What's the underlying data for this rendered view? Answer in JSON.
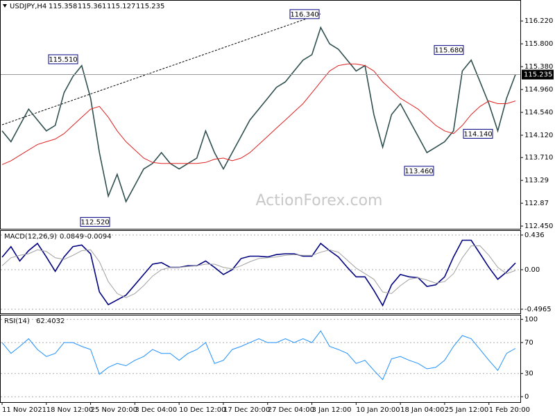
{
  "header": {
    "symbol": "USDJPY,H4",
    "ohlc": [
      115.358,
      115.361,
      115.127,
      115.235
    ]
  },
  "watermark": "ActionForex.com",
  "chart_data": [
    {
      "type": "line",
      "categories": [
        "11 Nov 2021",
        null,
        null,
        null,
        null,
        "18 Nov 12:00",
        null,
        null,
        null,
        null,
        "25 Nov 20:00",
        null,
        null,
        null,
        null,
        "3 Dec 04:00",
        null,
        null,
        null,
        null,
        "10 Dec 12:00",
        null,
        null,
        null,
        null,
        "17 Dec 20:00",
        null,
        null,
        null,
        null,
        "27 Dec 04:00",
        null,
        null,
        null,
        null,
        "3 Jan 12:00",
        null,
        null,
        null,
        null,
        "10 Jan 20:00",
        null,
        null,
        null,
        null,
        "18 Jan 04:00",
        null,
        null,
        null,
        null,
        "25 Jan 12:00",
        null,
        null,
        null,
        null,
        "1 Feb 20:00",
        null,
        null,
        null
      ],
      "series": [
        {
          "color": "#2f4f4f",
          "values": [
            114.2,
            114.0,
            114.3,
            114.6,
            114.4,
            114.2,
            114.3,
            114.9,
            115.2,
            115.4,
            114.8,
            113.8,
            113.0,
            113.4,
            112.9,
            113.2,
            113.5,
            113.6,
            113.8,
            113.6,
            113.5,
            113.6,
            113.7,
            114.2,
            113.8,
            113.5,
            113.8,
            114.1,
            114.4,
            114.6,
            114.8,
            115.0,
            115.1,
            115.3,
            115.5,
            115.6,
            116.1,
            115.8,
            115.7,
            115.5,
            115.3,
            115.4,
            114.5,
            113.9,
            114.5,
            114.7,
            114.4,
            114.1,
            113.8,
            113.9,
            114.0,
            114.2,
            115.3,
            115.5,
            115.1,
            114.7,
            114.2,
            114.8,
            115.235
          ]
        },
        {
          "color": "#e02020",
          "values": [
            113.58,
            113.65,
            113.75,
            113.85,
            113.95,
            114.0,
            114.05,
            114.15,
            114.3,
            114.45,
            114.6,
            114.65,
            114.45,
            114.2,
            114.0,
            113.85,
            113.7,
            113.62,
            113.6,
            113.6,
            113.6,
            113.6,
            113.6,
            113.62,
            113.68,
            113.7,
            113.65,
            113.7,
            113.8,
            113.95,
            114.1,
            114.25,
            114.4,
            114.55,
            114.7,
            114.9,
            115.1,
            115.3,
            115.4,
            115.43,
            115.43,
            115.4,
            115.3,
            115.1,
            114.95,
            114.8,
            114.7,
            114.6,
            114.45,
            114.3,
            114.2,
            114.15,
            114.3,
            114.5,
            114.65,
            114.75,
            114.7,
            114.7,
            114.75
          ]
        }
      ],
      "annotations": [
        {
          "value": 116.34,
          "label": "116.340"
        },
        {
          "value": 115.51,
          "label": "115.510"
        },
        {
          "value": 115.68,
          "label": "115.680"
        },
        {
          "value": 114.14,
          "label": "114.140"
        },
        {
          "value": 113.46,
          "label": "113.460"
        },
        {
          "value": 112.52,
          "label": "112.520"
        }
      ],
      "ylim": [
        112.4,
        116.58
      ],
      "yticks": [
        {
          "value": 116.22,
          "label": "116.220"
        },
        {
          "value": 115.8,
          "label": "115.800"
        },
        {
          "value": 115.38,
          "label": "115.380"
        },
        {
          "value": 114.96,
          "label": "114.960"
        },
        {
          "value": 114.54,
          "label": "114.540"
        },
        {
          "value": 114.12,
          "label": "114.120"
        },
        {
          "value": 113.71,
          "label": "113.710"
        },
        113.29,
        112.87,
        {
          "value": 112.45,
          "label": "112.450"
        }
      ],
      "grid": false
    },
    {
      "type": "line",
      "title": "MACD(12,26,9)",
      "readout": [
        0.0849,
        -0.0094
      ],
      "series": [
        {
          "color": "#000080",
          "values": [
            0.157,
            0.29,
            0.11,
            0.24,
            0.33,
            0.16,
            -0.02,
            0.16,
            0.29,
            0.31,
            0.2,
            -0.28,
            -0.44,
            -0.38,
            -0.32,
            -0.19,
            -0.06,
            0.07,
            0.09,
            0.03,
            0.03,
            0.05,
            0.05,
            0.11,
            0.03,
            -0.06,
            0,
            0.14,
            0.17,
            0.17,
            0.16,
            0.19,
            0.2,
            0.2,
            0.17,
            0.17,
            0.33,
            0.24,
            0.16,
            0.03,
            -0.09,
            -0.09,
            -0.26,
            -0.45,
            -0.19,
            -0.06,
            -0.09,
            -0.1,
            -0.21,
            -0.19,
            -0.09,
            0.16,
            0.37,
            0.37,
            0.2,
            0.03,
            -0.12,
            -0.03,
            0.0849
          ]
        },
        {
          "color": "#a0a0a0",
          "values": [
            0.05,
            0.15,
            0.18,
            0.2,
            0.25,
            0.23,
            0.15,
            0.13,
            0.18,
            0.24,
            0.25,
            0.1,
            -0.15,
            -0.3,
            -0.35,
            -0.3,
            -0.2,
            -0.08,
            0.0,
            0.03,
            0.03,
            0.04,
            0.05,
            0.07,
            0.07,
            0.03,
            0.01,
            0.05,
            0.1,
            0.14,
            0.15,
            0.16,
            0.18,
            0.19,
            0.18,
            0.18,
            0.22,
            0.25,
            0.22,
            0.12,
            0.02,
            -0.05,
            -0.12,
            -0.28,
            -0.3,
            -0.2,
            -0.12,
            -0.1,
            -0.13,
            -0.17,
            -0.15,
            -0.05,
            0.15,
            0.3,
            0.3,
            0.18,
            0.03,
            -0.05,
            -0.0094
          ]
        }
      ],
      "ylim": [
        -0.549,
        0.488
      ],
      "yticks": [
        0.436,
        {
          "value": 0,
          "label": "0.00"
        },
        -0.4965
      ],
      "grid": true
    },
    {
      "type": "line",
      "title": "RSI(14)",
      "readout": [
        62.4032
      ],
      "series": [
        {
          "color": "#1e90ff",
          "values": [
            70,
            56,
            65,
            75,
            61,
            52,
            56,
            70,
            70,
            65,
            61,
            29,
            38,
            43,
            40,
            47,
            52,
            61,
            56,
            56,
            47,
            56,
            61,
            70,
            43,
            47,
            61,
            65,
            70,
            75,
            70,
            70,
            75,
            70,
            75,
            70,
            85,
            65,
            61,
            56,
            43,
            47,
            34,
            22,
            49,
            52,
            47,
            43,
            36,
            38,
            47,
            65,
            79,
            75,
            61,
            47,
            34,
            56,
            62.4032
          ]
        }
      ],
      "ylim": [
        -7,
        105
      ],
      "yticks": [
        0,
        30,
        70,
        100
      ],
      "grid": true
    }
  ]
}
